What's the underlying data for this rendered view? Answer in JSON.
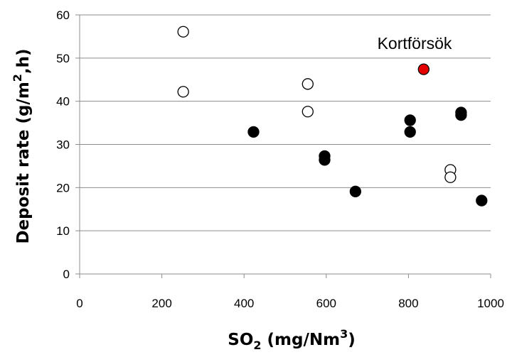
{
  "chart_data": {
    "type": "scatter",
    "title": "",
    "xlabel": {
      "base": "SO",
      "sub": "2",
      "rest": " (mg/Nm",
      "sup": "3",
      "end": ")"
    },
    "ylabel": {
      "base": "Deposit rate  (g/m",
      "sup": "2",
      "rest": ",h)"
    },
    "xlim": [
      0,
      1000
    ],
    "ylim": [
      0,
      60
    ],
    "x_ticks": [
      0,
      200,
      400,
      600,
      800,
      1000
    ],
    "y_ticks": [
      0,
      10,
      20,
      30,
      40,
      50,
      60
    ],
    "grid": {
      "horizontal": true,
      "vertical": false
    },
    "annotation": {
      "text": "Kortförsök",
      "x": 795,
      "y": 50.5
    },
    "series": [
      {
        "marker": "open-circle",
        "color": "#000000",
        "fill": "#ffffff",
        "points": [
          {
            "x": 252,
            "y": 56.1
          },
          {
            "x": 252,
            "y": 42.2
          },
          {
            "x": 555,
            "y": 44.0
          },
          {
            "x": 555,
            "y": 37.6
          },
          {
            "x": 902,
            "y": 24.1
          },
          {
            "x": 902,
            "y": 22.4
          }
        ]
      },
      {
        "marker": "filled-circle",
        "color": "#000000",
        "fill": "#000000",
        "points": [
          {
            "x": 423,
            "y": 32.9
          },
          {
            "x": 596,
            "y": 27.3
          },
          {
            "x": 596,
            "y": 26.4
          },
          {
            "x": 671,
            "y": 19.1
          },
          {
            "x": 804,
            "y": 35.6
          },
          {
            "x": 804,
            "y": 32.9
          },
          {
            "x": 928,
            "y": 37.4
          },
          {
            "x": 928,
            "y": 36.8
          },
          {
            "x": 978,
            "y": 17.0
          }
        ]
      },
      {
        "marker": "filled-circle",
        "color": "#000000",
        "fill": "#e50000",
        "points": [
          {
            "x": 837,
            "y": 47.4
          }
        ]
      }
    ]
  }
}
